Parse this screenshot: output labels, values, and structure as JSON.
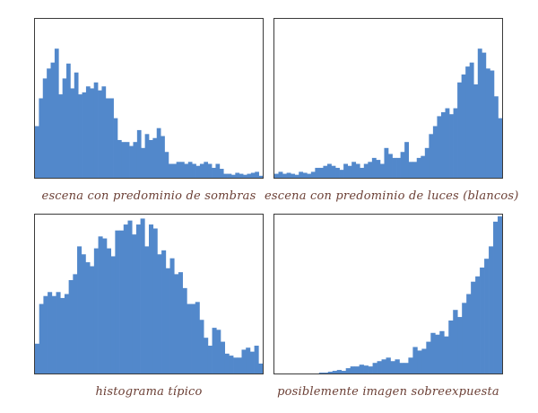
{
  "colors": {
    "bars": "#5288cb",
    "frame": "#3a3a3a",
    "caption_text": "#6b3f35",
    "background": "#ffffff"
  },
  "chart_data": [
    {
      "type": "bar",
      "title": "escena con predominio de sombras",
      "ylim": [
        0,
        160
      ],
      "grid": false,
      "values": [
        52,
        80,
        100,
        110,
        116,
        130,
        84,
        100,
        115,
        90,
        106,
        84,
        86,
        92,
        90,
        96,
        88,
        92,
        80,
        80,
        60,
        38,
        36,
        36,
        32,
        36,
        48,
        30,
        44,
        38,
        40,
        50,
        42,
        26,
        14,
        14,
        16,
        16,
        14,
        16,
        14,
        12,
        14,
        16,
        14,
        10,
        14,
        9,
        4,
        4,
        3,
        5,
        4,
        3,
        4,
        5,
        6,
        2
      ]
    },
    {
      "type": "bar",
      "title": "escena con predominio de luces (blancos)",
      "ylim": [
        0,
        160
      ],
      "grid": false,
      "values": [
        4,
        6,
        4,
        5,
        4,
        3,
        6,
        5,
        4,
        6,
        10,
        10,
        12,
        14,
        12,
        10,
        8,
        14,
        12,
        16,
        14,
        10,
        14,
        16,
        20,
        18,
        14,
        30,
        24,
        20,
        20,
        26,
        36,
        16,
        16,
        20,
        22,
        30,
        44,
        52,
        62,
        66,
        70,
        64,
        70,
        96,
        104,
        112,
        116,
        94,
        130,
        126,
        110,
        108,
        82,
        60
      ]
    },
    {
      "type": "bar",
      "title": "histograma típico",
      "ylim": [
        0,
        160
      ],
      "grid": false,
      "values": [
        30,
        70,
        78,
        82,
        78,
        82,
        76,
        80,
        94,
        100,
        128,
        120,
        112,
        108,
        126,
        138,
        136,
        126,
        118,
        144,
        144,
        150,
        154,
        140,
        150,
        156,
        128,
        150,
        146,
        120,
        124,
        106,
        116,
        100,
        102,
        86,
        70,
        70,
        72,
        54,
        36,
        28,
        46,
        44,
        32,
        20,
        18,
        16,
        16,
        24,
        26,
        22,
        28,
        10
      ]
    },
    {
      "type": "bar",
      "title": "posiblemente imagen sobreexpuesta",
      "ylim": [
        0,
        180
      ],
      "grid": false,
      "values": [
        0,
        0,
        0,
        0,
        0,
        0,
        0,
        0,
        0,
        0,
        1,
        1,
        2,
        3,
        4,
        3,
        6,
        8,
        8,
        10,
        9,
        8,
        12,
        14,
        16,
        18,
        14,
        16,
        12,
        12,
        18,
        30,
        26,
        28,
        36,
        46,
        44,
        48,
        42,
        60,
        72,
        64,
        80,
        90,
        104,
        110,
        120,
        130,
        144,
        172,
        178
      ]
    }
  ]
}
